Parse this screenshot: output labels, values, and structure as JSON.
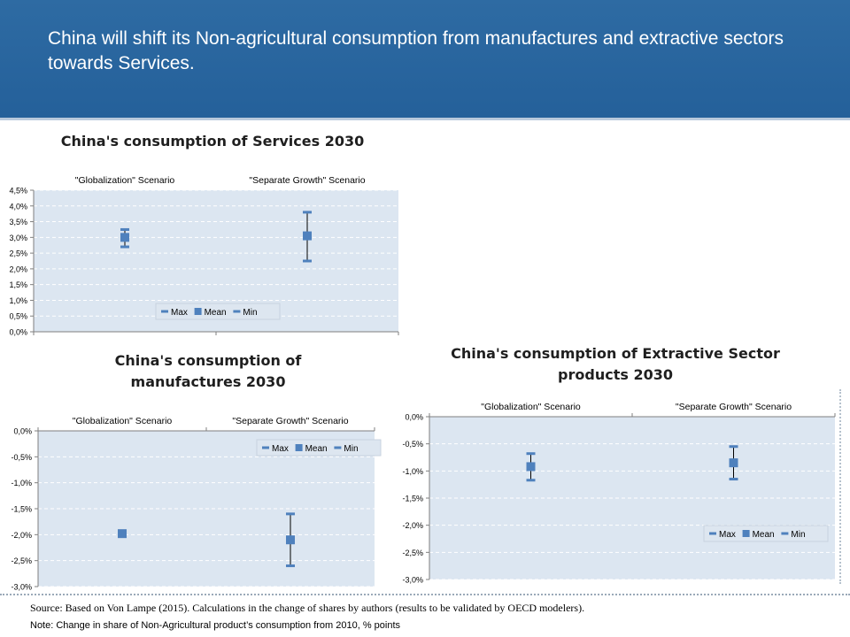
{
  "banner": {
    "text": "China will shift its Non-agricultural consumption from manufactures and extractive sectors towards Services."
  },
  "footer": {
    "source": "Source: Based on Von Lampe (2015). Calculations in the change of shares by authors (results to be validated by OECD modelers).",
    "note": "Note: Change in share of Non-Agricultural product’s consumption from 2010, % points"
  },
  "colors": {
    "banner": "#2a67a0",
    "plot_bg": "#dce6f1",
    "marker": "#4f81bd",
    "whisker": "#000000"
  },
  "charts": {
    "services": {
      "title": "China's consumption of Services 2030"
    },
    "manufactures": {
      "title_line1": "China's consumption of",
      "title_line2": "manufactures 2030"
    },
    "extractive": {
      "title_line1": "China's consumption of Extractive Sector",
      "title_line2": "products 2030"
    }
  },
  "chart_data": [
    {
      "id": "services",
      "type": "scatter",
      "title": "China's consumption of Services 2030",
      "categories": [
        "\"Globalization\" Scenario",
        "\"Separate Growth\" Scenario"
      ],
      "series": [
        {
          "name": "Max",
          "values": [
            3.25,
            3.8
          ]
        },
        {
          "name": "Mean",
          "values": [
            3.0,
            3.05
          ]
        },
        {
          "name": "Min",
          "values": [
            2.7,
            2.25
          ]
        }
      ],
      "ylim": [
        0,
        4.5
      ],
      "yticks": [
        0,
        0.5,
        1.0,
        1.5,
        2.0,
        2.5,
        3.0,
        3.5,
        4.0,
        4.5
      ],
      "yticklabels": [
        "0,0%",
        "0,5%",
        "1,0%",
        "1,5%",
        "2,0%",
        "2,5%",
        "3,0%",
        "3,5%",
        "4,0%",
        "4,5%"
      ],
      "legend": "bottom-center",
      "grid": true
    },
    {
      "id": "manufactures",
      "type": "scatter",
      "title": "China's consumption of manufactures 2030",
      "categories": [
        "\"Globalization\" Scenario",
        "\"Separate Growth\" Scenario"
      ],
      "series": [
        {
          "name": "Max",
          "values": [
            -1.93,
            -1.6
          ]
        },
        {
          "name": "Mean",
          "values": [
            -1.98,
            -2.1
          ]
        },
        {
          "name": "Min",
          "values": [
            -2.03,
            -2.6
          ]
        }
      ],
      "ylim": [
        -3.0,
        0
      ],
      "yticks": [
        0,
        -0.5,
        -1.0,
        -1.5,
        -2.0,
        -2.5,
        -3.0
      ],
      "yticklabels": [
        "0,0%",
        "-0,5%",
        "-1,0%",
        "-1,5%",
        "-2,0%",
        "-2,5%",
        "-3,0%"
      ],
      "legend": "top-right",
      "grid": true
    },
    {
      "id": "extractive",
      "type": "scatter",
      "title": "China's consumption of Extractive Sector products 2030",
      "categories": [
        "\"Globalization\" Scenario",
        "\"Separate Growth\" Scenario"
      ],
      "series": [
        {
          "name": "Max",
          "values": [
            -0.68,
            -0.55
          ]
        },
        {
          "name": "Mean",
          "values": [
            -0.92,
            -0.85
          ]
        },
        {
          "name": "Min",
          "values": [
            -1.17,
            -1.15
          ]
        }
      ],
      "ylim": [
        -3.0,
        0
      ],
      "yticks": [
        0,
        -0.5,
        -1.0,
        -1.5,
        -2.0,
        -2.5,
        -3.0
      ],
      "yticklabels": [
        "0,0%",
        "-0,5%",
        "-1,0%",
        "-1,5%",
        "-2,0%",
        "-2,5%",
        "-3,0%"
      ],
      "legend": "bottom-right",
      "grid": true
    }
  ]
}
